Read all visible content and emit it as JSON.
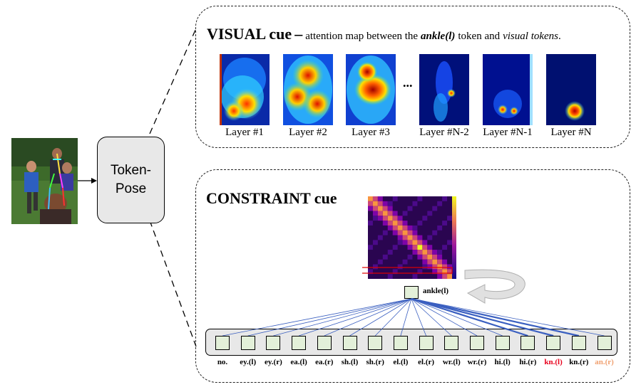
{
  "photo": {
    "description_icon": "runner-photo-icon"
  },
  "model_box": {
    "label_line1": "Token-",
    "label_line2": "Pose"
  },
  "visual_panel": {
    "title": "VISUAL cue",
    "dash": "–",
    "desc_1": "attention map between the",
    "desc_token": "ankle(l)",
    "desc_2": "token and",
    "desc_visual": "visual tokens",
    "desc_end": ".",
    "ellipsis": "...",
    "layers": [
      {
        "label": "Layer #1"
      },
      {
        "label": "Layer #2"
      },
      {
        "label": "Layer #3"
      },
      {
        "label": "Layer #N-2"
      },
      {
        "label": "Layer #N-1"
      },
      {
        "label": "Layer #N"
      }
    ]
  },
  "constraint_panel": {
    "title": "CONSTRAINT cue",
    "selected_token": "ankle(l)",
    "keypoints": [
      {
        "label": "no.",
        "color": "#000000"
      },
      {
        "label": "ey.(l)",
        "color": "#000000"
      },
      {
        "label": "ey.(r)",
        "color": "#000000"
      },
      {
        "label": "ea.(l)",
        "color": "#000000"
      },
      {
        "label": "ea.(r)",
        "color": "#000000"
      },
      {
        "label": "sh.(l)",
        "color": "#000000"
      },
      {
        "label": "sh.(r)",
        "color": "#000000"
      },
      {
        "label": "el.(l)",
        "color": "#000000"
      },
      {
        "label": "el.(r)",
        "color": "#000000"
      },
      {
        "label": "wr.(l)",
        "color": "#000000"
      },
      {
        "label": "wr.(r)",
        "color": "#000000"
      },
      {
        "label": "hi.(l)",
        "color": "#000000"
      },
      {
        "label": "hi.(r)",
        "color": "#000000"
      },
      {
        "label": "kn.(l)",
        "color": "#e8001c"
      },
      {
        "label": "kn.(r)",
        "color": "#000000"
      },
      {
        "label": "an.(r)",
        "color": "#f0a070"
      }
    ]
  },
  "colors": {
    "token_fill": "#e3f0d9",
    "link": "#3a5fc0",
    "panel_border": "#222222",
    "box_fill": "#e8e8e8"
  }
}
